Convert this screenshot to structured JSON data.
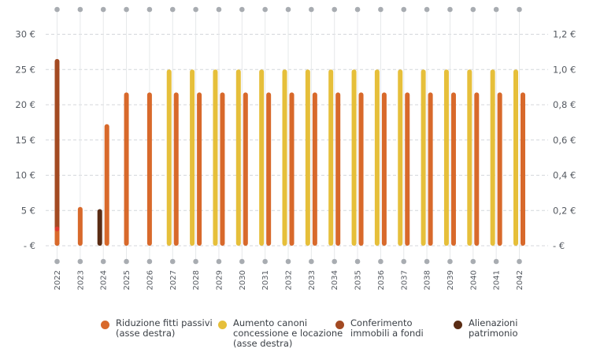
{
  "chart_data": {
    "type": "bar",
    "categories": [
      "2022",
      "2023",
      "2024",
      "2025",
      "2026",
      "2027",
      "2028",
      "2029",
      "2030",
      "2031",
      "2032",
      "2033",
      "2034",
      "2035",
      "2036",
      "2037",
      "2038",
      "2039",
      "2040",
      "2041",
      "2042"
    ],
    "left_axis": {
      "ylim": [
        0,
        30
      ],
      "tick_values": [
        0,
        5,
        10,
        15,
        20,
        25,
        30
      ],
      "tick_labels": [
        "- €",
        "5 €",
        "10 €",
        "15 €",
        "20 €",
        "25 €",
        "30 €"
      ]
    },
    "right_axis": {
      "ylim": [
        0,
        1.2
      ],
      "tick_values": [
        0,
        0.2,
        0.4,
        0.6,
        0.8,
        1.0,
        1.2
      ],
      "tick_labels": [
        "- €",
        "0,2 €",
        "0,4 €",
        "0,6 €",
        "0,8 €",
        "1,0 €",
        "1,2 €"
      ]
    },
    "series": [
      {
        "name": "Riduzione fitti passivi\n(asse destra)",
        "axis": "right",
        "color": "#d8692b",
        "values": [
          0.1,
          0.22,
          0.69,
          0.87,
          0.87,
          0.87,
          0.87,
          0.87,
          0.87,
          0.87,
          0.87,
          0.87,
          0.87,
          0.87,
          0.87,
          0.87,
          0.87,
          0.87,
          0.87,
          0.87,
          0.87
        ]
      },
      {
        "name": "Aumento canoni\nconcessione e locazione\n(asse destra)",
        "axis": "right",
        "color": "#e6bf3a",
        "values": [
          null,
          null,
          null,
          null,
          null,
          1.0,
          1.0,
          1.0,
          1.0,
          1.0,
          1.0,
          1.0,
          1.0,
          1.0,
          1.0,
          1.0,
          1.0,
          1.0,
          1.0,
          1.0,
          1.0
        ]
      },
      {
        "name": "Conferimento\nimmobili a fondi",
        "axis": "left",
        "color": "#a34a22",
        "values": [
          26.5,
          null,
          null,
          null,
          null,
          null,
          null,
          null,
          null,
          null,
          null,
          null,
          null,
          null,
          null,
          null,
          null,
          null,
          null,
          null,
          null
        ]
      },
      {
        "name": "Alienazioni\npatrimonio",
        "axis": "left",
        "color": "#5a2c14",
        "values": [
          null,
          null,
          5.2,
          null,
          null,
          null,
          null,
          null,
          null,
          null,
          null,
          null,
          null,
          null,
          null,
          null,
          null,
          null,
          null,
          null,
          null
        ]
      }
    ],
    "grid": true,
    "legend_placement": "bottom"
  },
  "colors": {
    "gridline": "#d4d7db",
    "axis_dot": "#a8acb1",
    "tick_text": "#555a61"
  }
}
